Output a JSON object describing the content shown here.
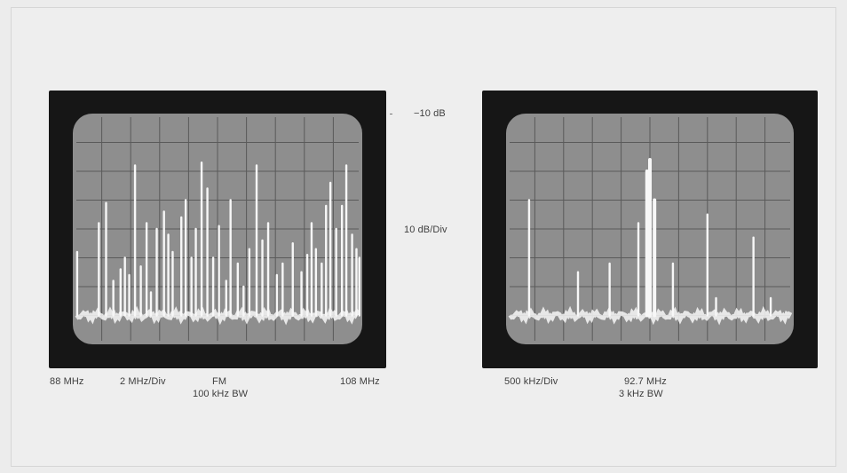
{
  "labels": {
    "ref_level": "−10 dB",
    "vertical_scale": "10 dB/Div"
  },
  "left_panel": {
    "start_freq": "88 MHz",
    "horizontal_scale": "2 MHz/Div",
    "mode": "FM",
    "bandwidth": "100 kHz   BW",
    "stop_freq": "108 MHz"
  },
  "right_panel": {
    "horizontal_scale": "500 kHz/Div",
    "center_freq": "92.7 MHz",
    "bandwidth": "3 kHz   BW"
  },
  "colors": {
    "screen": "#8e8e8e",
    "grid": "#5a5a5a",
    "trace": "#f7f7f7",
    "bezel": "#161616",
    "background": "#eeeeee"
  },
  "chart_data": [
    {
      "type": "line",
      "title": "",
      "x_range_mhz": [
        88,
        108
      ],
      "y_range_db": [
        -10,
        -90
      ],
      "grid": true,
      "noise_floor_db": -80,
      "peaks_x_mhz": [
        88.3,
        89.8,
        90.3,
        90.8,
        91.3,
        91.6,
        91.9,
        92.3,
        92.7,
        93.1,
        93.4,
        93.8,
        94.3,
        94.6,
        94.9,
        95.5,
        95.8,
        96.2,
        96.5,
        96.9,
        97.3,
        97.7,
        98.1,
        98.6,
        98.9,
        99.4,
        99.8,
        100.2,
        100.7,
        101.1,
        101.5,
        102.1,
        102.5,
        103.2,
        103.8,
        104.2,
        104.5,
        104.8,
        105.2,
        105.5,
        105.8,
        106.2,
        106.6,
        106.9,
        107.3,
        107.6,
        107.8
      ],
      "peaks_y_db": [
        -58,
        -48,
        -41,
        -68,
        -64,
        -60,
        -66,
        -28,
        -63,
        -48,
        -72,
        -50,
        -44,
        -52,
        -58,
        -46,
        -40,
        -60,
        -50,
        -27,
        -36,
        -60,
        -49,
        -68,
        -40,
        -62,
        -70,
        -57,
        -28,
        -54,
        -48,
        -66,
        -62,
        -55,
        -65,
        -59,
        -48,
        -57,
        -62,
        -42,
        -34,
        -50,
        -42,
        -28,
        -52,
        -57,
        -60
      ]
    },
    {
      "type": "line",
      "title": "",
      "x_range_khz": [
        -2500,
        2500
      ],
      "x_center_mhz": 92.7,
      "y_range_db": [
        -10,
        -90
      ],
      "grid": true,
      "noise_floor_db": -80,
      "peaks_x_khz": [
        -2100,
        -1250,
        -700,
        -200,
        -50,
        0,
        80,
        400,
        1000,
        1150,
        1800,
        2100
      ],
      "peaks_y_db": [
        -40,
        -65,
        -62,
        -48,
        -30,
        -26,
        -40,
        -62,
        -45,
        -74,
        -53,
        -74
      ]
    }
  ]
}
